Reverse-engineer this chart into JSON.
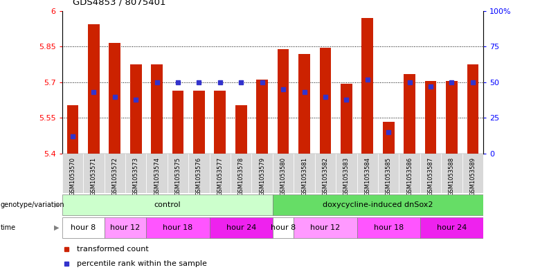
{
  "title": "GDS4853 / 8075401",
  "samples": [
    "GSM1053570",
    "GSM1053571",
    "GSM1053572",
    "GSM1053573",
    "GSM1053574",
    "GSM1053575",
    "GSM1053576",
    "GSM1053577",
    "GSM1053578",
    "GSM1053579",
    "GSM1053580",
    "GSM1053581",
    "GSM1053582",
    "GSM1053583",
    "GSM1053584",
    "GSM1053585",
    "GSM1053586",
    "GSM1053587",
    "GSM1053588",
    "GSM1053589"
  ],
  "bar_values": [
    5.605,
    5.945,
    5.865,
    5.775,
    5.775,
    5.665,
    5.665,
    5.665,
    5.605,
    5.71,
    5.84,
    5.82,
    5.845,
    5.695,
    5.97,
    5.535,
    5.735,
    5.705,
    5.705,
    5.775
  ],
  "percentile_values": [
    12,
    43,
    40,
    38,
    50,
    50,
    50,
    50,
    50,
    50,
    45,
    43,
    40,
    38,
    52,
    15,
    50,
    47,
    50,
    50
  ],
  "ylim_left": [
    5.4,
    6.0
  ],
  "ylim_right": [
    0,
    100
  ],
  "yticks_left": [
    5.4,
    5.55,
    5.7,
    5.85,
    6.0
  ],
  "ytick_labels_left": [
    "5.4",
    "5.55",
    "5.7",
    "5.85",
    "6"
  ],
  "yticks_right": [
    0,
    25,
    50,
    75,
    100
  ],
  "ytick_labels_right": [
    "0",
    "25",
    "50",
    "75",
    "100%"
  ],
  "bar_color": "#cc2200",
  "dot_color": "#3333cc",
  "genotype_groups": [
    {
      "label": "control",
      "start": 0,
      "end": 9,
      "color": "#ccffcc"
    },
    {
      "label": "doxycycline-induced dnSox2",
      "start": 10,
      "end": 19,
      "color": "#66dd66"
    }
  ],
  "time_segments": [
    {
      "label": "hour 8",
      "start": 0,
      "end": 1,
      "color": "#ffffff"
    },
    {
      "label": "hour 12",
      "start": 2,
      "end": 3,
      "color": "#ff99ff"
    },
    {
      "label": "hour 18",
      "start": 4,
      "end": 6,
      "color": "#ff55ff"
    },
    {
      "label": "hour 24",
      "start": 7,
      "end": 9,
      "color": "#ee22ee"
    },
    {
      "label": "hour 8",
      "start": 10,
      "end": 10,
      "color": "#ffffff"
    },
    {
      "label": "hour 12",
      "start": 11,
      "end": 13,
      "color": "#ff99ff"
    },
    {
      "label": "hour 18",
      "start": 14,
      "end": 16,
      "color": "#ff55ff"
    },
    {
      "label": "hour 24",
      "start": 17,
      "end": 19,
      "color": "#ee22ee"
    }
  ],
  "legend_items": [
    {
      "label": "transformed count",
      "color": "#cc2200"
    },
    {
      "label": "percentile rank within the sample",
      "color": "#3333cc"
    }
  ]
}
